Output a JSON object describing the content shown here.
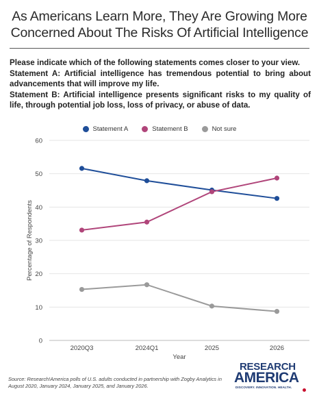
{
  "title_line1": "As Americans Learn More, They Are Growing More",
  "title_line2": "Concerned About The Risks Of Artificial Intelligence",
  "question": {
    "prompt": "Please indicate which of the following statements comes closer to your view.",
    "statement_a": "Statement A: Artificial intelligence has tremendous potential to bring about advancements that will improve my life.",
    "statement_b": "Statement B: Artificial intelligence presents significant risks to my quality of life, through potential job loss, loss of privacy, or abuse of data."
  },
  "source": "Source: Research!America polls of U.S. adults conducted in partnership with Zogby Analytics in August 2020, January 2024, January 2025, and January 2026.",
  "logo": {
    "line1": "RESEARCH",
    "line2": "AMERICA",
    "tagline": "DISCOVERY. INNOVATION. HEALTH."
  },
  "chart_data": {
    "type": "line",
    "categories": [
      "2020Q3",
      "2024Q1",
      "2025",
      "2026"
    ],
    "xlabel": "Year",
    "ylabel": "Percentage of Respondents",
    "ylim": [
      0,
      60
    ],
    "yticks": [
      0,
      10,
      20,
      30,
      40,
      50,
      60
    ],
    "grid": true,
    "legend_position": "top-center",
    "series": [
      {
        "name": "Statement A",
        "color": "#1f4e99",
        "values": [
          51.6,
          47.9,
          45.1,
          42.6
        ]
      },
      {
        "name": "Statement B",
        "color": "#b0457a",
        "values": [
          33.1,
          35.5,
          44.6,
          48.7
        ]
      },
      {
        "name": "Not sure",
        "color": "#9a9a9a",
        "values": [
          15.3,
          16.7,
          10.3,
          8.7
        ]
      }
    ]
  }
}
